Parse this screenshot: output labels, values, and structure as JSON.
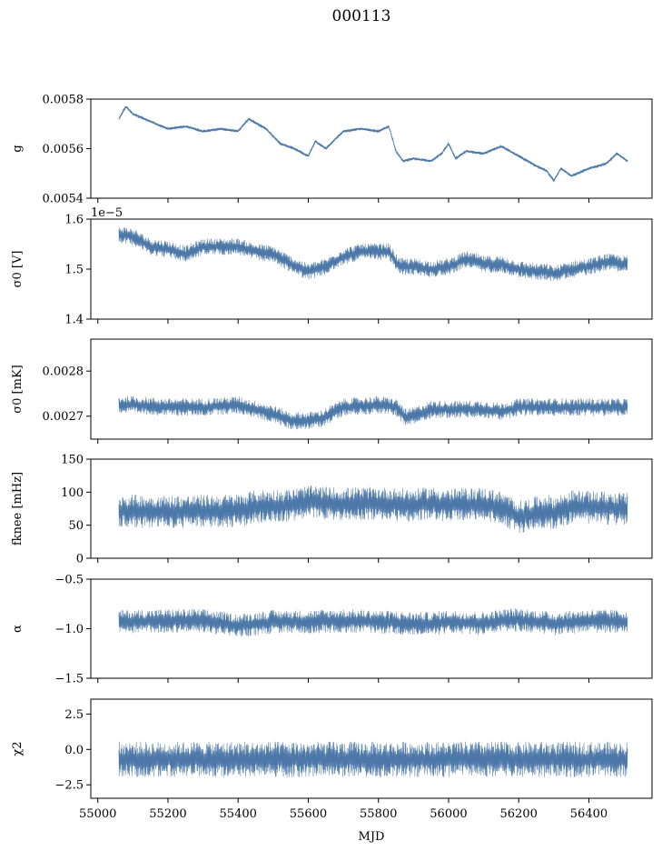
{
  "figure": {
    "title": "000113",
    "xlabel": "MJD",
    "series_color": "#4c78a8"
  },
  "chart_data": [
    {
      "type": "line",
      "ylabel": "g",
      "xlim": [
        54980,
        56580
      ],
      "ylim": [
        0.0054,
        0.0058
      ],
      "yticks": [
        "0.0058",
        "0.0056",
        "0.0054"
      ],
      "ytick_values": [
        0.0058,
        0.0056,
        0.0054
      ],
      "noise": 3.5e-06,
      "series": [
        {
          "x": [
            55060,
            55080,
            55100,
            55150,
            55200,
            55250,
            55300,
            55350,
            55400,
            55430,
            55480,
            55520,
            55560,
            55600,
            55620,
            55650,
            55700,
            55750,
            55800,
            55830,
            55850,
            55870,
            55900,
            55950,
            55980,
            56000,
            56020,
            56050,
            56100,
            56150,
            56200,
            56250,
            56280,
            56300,
            56320,
            56350,
            56400,
            56450,
            56480,
            56510
          ],
          "y": [
            0.00572,
            0.00577,
            0.00574,
            0.00571,
            0.00568,
            0.00569,
            0.00567,
            0.00568,
            0.00567,
            0.00572,
            0.00568,
            0.00562,
            0.0056,
            0.00557,
            0.00563,
            0.0056,
            0.00567,
            0.00568,
            0.00567,
            0.00569,
            0.00559,
            0.00555,
            0.00556,
            0.00555,
            0.00558,
            0.00562,
            0.00556,
            0.00559,
            0.00558,
            0.00561,
            0.00557,
            0.00553,
            0.00551,
            0.00547,
            0.00552,
            0.00549,
            0.00552,
            0.00554,
            0.00558,
            0.00555
          ]
        }
      ]
    },
    {
      "type": "line",
      "ylabel": "σ0 [V]",
      "offset_label": "1e−5",
      "xlim": [
        54980,
        56580
      ],
      "ylim": [
        1.4,
        1.6
      ],
      "yticks": [
        "1.6",
        "1.5",
        "1.4"
      ],
      "ytick_values": [
        1.6,
        1.5,
        1.4
      ],
      "noise": 0.012,
      "series": [
        {
          "x": [
            55060,
            55100,
            55150,
            55200,
            55250,
            55300,
            55350,
            55400,
            55450,
            55500,
            55550,
            55600,
            55650,
            55700,
            55750,
            55800,
            55830,
            55860,
            55900,
            55950,
            56000,
            56050,
            56100,
            56150,
            56200,
            56250,
            56280,
            56300,
            56350,
            56400,
            56450,
            56510
          ],
          "y": [
            1.57,
            1.565,
            1.545,
            1.54,
            1.53,
            1.545,
            1.545,
            1.545,
            1.535,
            1.53,
            1.51,
            1.495,
            1.505,
            1.525,
            1.535,
            1.535,
            1.535,
            1.505,
            1.505,
            1.5,
            1.505,
            1.52,
            1.51,
            1.51,
            1.5,
            1.495,
            1.495,
            1.49,
            1.5,
            1.505,
            1.515,
            1.51
          ]
        }
      ]
    },
    {
      "type": "line",
      "ylabel": "σ0 [mK]",
      "xlim": [
        54980,
        56580
      ],
      "ylim": [
        0.002649,
        0.002871
      ],
      "yticks": [
        "0.0028",
        "0.0027"
      ],
      "ytick_values": [
        0.0028,
        0.0027
      ],
      "noise": 1.4e-05,
      "series": [
        {
          "x": [
            55060,
            55100,
            55200,
            55300,
            55400,
            55500,
            55550,
            55600,
            55640,
            55700,
            55800,
            55850,
            55880,
            55950,
            56000,
            56100,
            56150,
            56200,
            56250,
            56300,
            56400,
            56510
          ],
          "y": [
            0.002725,
            0.002725,
            0.00272,
            0.00272,
            0.002725,
            0.002705,
            0.00269,
            0.00269,
            0.002695,
            0.00272,
            0.002725,
            0.00272,
            0.002695,
            0.002715,
            0.002715,
            0.002715,
            0.00271,
            0.00272,
            0.00272,
            0.00272,
            0.00272,
            0.00272
          ]
        }
      ]
    },
    {
      "type": "line",
      "ylabel": "fknee [mHz]",
      "xlim": [
        54980,
        56580
      ],
      "ylim": [
        0,
        150
      ],
      "yticks": [
        "150",
        "100",
        "50",
        "0"
      ],
      "ytick_values": [
        150,
        100,
        50,
        0
      ],
      "noise": 18,
      "series": [
        {
          "x": [
            55060,
            55200,
            55400,
            55450,
            55550,
            55600,
            55700,
            55800,
            55900,
            55950,
            56000,
            56100,
            56150,
            56200,
            56280,
            56300,
            56350,
            56450,
            56510
          ],
          "y": [
            72,
            70,
            72,
            78,
            80,
            85,
            82,
            83,
            80,
            83,
            80,
            82,
            76,
            62,
            72,
            68,
            78,
            76,
            74
          ]
        }
      ]
    },
    {
      "type": "line",
      "ylabel": "α",
      "xlim": [
        54980,
        56580
      ],
      "ylim": [
        -1.5,
        -0.5
      ],
      "yticks": [
        "−0.5",
        "−1.0",
        "−1.5"
      ],
      "ytick_values": [
        -0.5,
        -1.0,
        -1.5
      ],
      "noise": 0.085,
      "series": [
        {
          "x": [
            55060,
            55200,
            55300,
            55400,
            55500,
            55600,
            55700,
            55800,
            55900,
            55950,
            56000,
            56100,
            56150,
            56200,
            56300,
            56400,
            56510
          ],
          "y": [
            -0.93,
            -0.92,
            -0.92,
            -0.97,
            -0.93,
            -0.93,
            -0.92,
            -0.93,
            -0.95,
            -0.95,
            -0.93,
            -0.95,
            -0.92,
            -0.91,
            -0.95,
            -0.92,
            -0.93
          ]
        }
      ]
    },
    {
      "type": "line",
      "ylabel": "χ2",
      "xlim": [
        54980,
        56580
      ],
      "ylim": [
        -3.45,
        3.55
      ],
      "yticks": [
        "2.5",
        "0.0",
        "−2.5"
      ],
      "ytick_values": [
        2.5,
        0.0,
        -2.5
      ],
      "xticks": [
        "55000",
        "55200",
        "55400",
        "55600",
        "55800",
        "56000",
        "56200",
        "56400"
      ],
      "xtick_values": [
        55000,
        55200,
        55400,
        55600,
        55800,
        56000,
        56200,
        56400
      ],
      "noise": 0.9,
      "series": [
        {
          "x": [
            55060,
            56510
          ],
          "y": [
            -0.7,
            -0.7
          ]
        }
      ]
    }
  ]
}
